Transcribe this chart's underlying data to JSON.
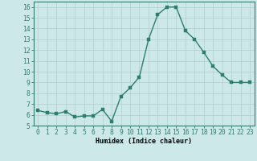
{
  "x": [
    0,
    1,
    2,
    3,
    4,
    5,
    6,
    7,
    8,
    9,
    10,
    11,
    12,
    13,
    14,
    15,
    16,
    17,
    18,
    19,
    20,
    21,
    22,
    23
  ],
  "y": [
    6.4,
    6.2,
    6.1,
    6.3,
    5.8,
    5.9,
    5.9,
    6.5,
    5.4,
    7.7,
    8.5,
    9.5,
    13.0,
    15.3,
    16.0,
    16.0,
    13.8,
    13.0,
    11.8,
    10.5,
    9.7,
    9.0,
    9.0,
    9.0
  ],
  "bg_color": "#cce8e8",
  "line_color": "#2e7d6e",
  "marker_color": "#2e7d6e",
  "grid_color": "#b0cfcf",
  "grid_minor_color": "#c5dfdf",
  "axis_color": "#3a7a70",
  "xlabel": "Humidex (Indice chaleur)",
  "xlim": [
    -0.5,
    23.5
  ],
  "ylim": [
    5,
    16.5
  ],
  "yticks": [
    5,
    6,
    7,
    8,
    9,
    10,
    11,
    12,
    13,
    14,
    15,
    16
  ],
  "xticks": [
    0,
    1,
    2,
    3,
    4,
    5,
    6,
    7,
    8,
    9,
    10,
    11,
    12,
    13,
    14,
    15,
    16,
    17,
    18,
    19,
    20,
    21,
    22,
    23
  ],
  "xlabel_fontsize": 6.0,
  "tick_fontsize": 5.8,
  "line_width": 1.0,
  "marker_size": 2.5
}
